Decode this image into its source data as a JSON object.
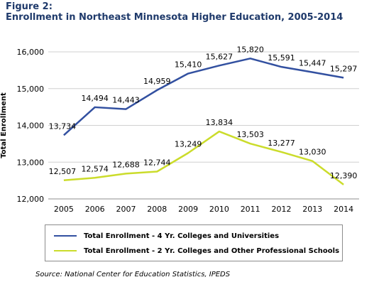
{
  "figure": {
    "label": "Figure 2:",
    "title": "Enrollment in Northeast Minnesota Higher Education, 2005-2014"
  },
  "source": "Source: National Center for Education Statistics, IPEDS",
  "colors": {
    "four_year": "#3250a0",
    "two_year": "#cbdc2b",
    "gridline": "#d0d0d0",
    "title": "#1f3a6b"
  },
  "chart_data": {
    "type": "line",
    "title": "Enrollment in Northeast Minnesota Higher Education, 2005-2014",
    "xlabel": "",
    "ylabel": "Total Enrollment",
    "x": [
      "2005",
      "2006",
      "2007",
      "2008",
      "2009",
      "2010",
      "2011",
      "2012",
      "2013",
      "2014"
    ],
    "ylim": [
      12000,
      16000
    ],
    "yticks": [
      12000,
      13000,
      14000,
      15000,
      16000
    ],
    "ytick_labels": [
      "12,000",
      "13,000",
      "14,000",
      "15,000",
      "16,000"
    ],
    "grid": true,
    "legend_position": "bottom",
    "series": [
      {
        "name": "Total Enrollment - 4 Yr. Colleges and Universities",
        "values": [
          13734,
          14494,
          14443,
          14959,
          15410,
          15627,
          15820,
          15591,
          15447,
          15297
        ],
        "labels": [
          "13,734",
          "14,494",
          "14,443",
          "14,959",
          "15,410",
          "15,627",
          "15,820",
          "15,591",
          "15,447",
          "15,297"
        ]
      },
      {
        "name": "Total Enrollment - 2 Yr. Colleges and Other Professional Schools",
        "values": [
          12507,
          12574,
          12688,
          12744,
          13249,
          13834,
          13503,
          13277,
          13030,
          12390
        ],
        "labels": [
          "12,507",
          "12,574",
          "12,688",
          "12,744",
          "13,249",
          "13,834",
          "13,503",
          "13,277",
          "13,030",
          "12,390"
        ]
      }
    ]
  }
}
